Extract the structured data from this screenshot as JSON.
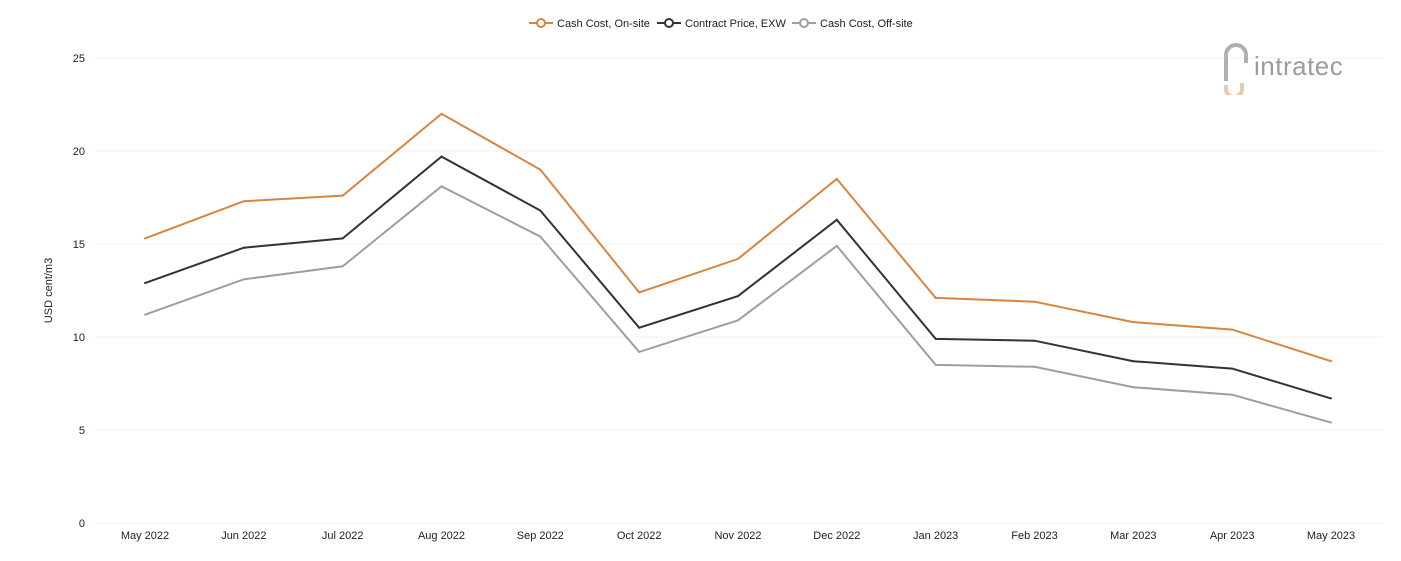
{
  "chart_data": {
    "type": "line",
    "title": "",
    "xlabel": "",
    "ylabel": "USD cent/m3",
    "ylim": [
      0,
      25
    ],
    "yticks": [
      0,
      5,
      10,
      15,
      20,
      25
    ],
    "grid": true,
    "legend_position": "top-center",
    "categories": [
      "May 2022",
      "Jun 2022",
      "Jul 2022",
      "Aug 2022",
      "Sep 2022",
      "Oct 2022",
      "Nov 2022",
      "Dec 2022",
      "Jan 2023",
      "Feb 2023",
      "Mar 2023",
      "Apr 2023",
      "May 2023"
    ],
    "series": [
      {
        "name": "Cash Cost, On-site",
        "color": "#d9843f",
        "values": [
          15.3,
          17.3,
          17.6,
          22.0,
          19.0,
          12.4,
          14.2,
          18.5,
          12.1,
          11.9,
          10.8,
          10.4,
          8.7
        ]
      },
      {
        "name": "Contract Price, EXW",
        "color": "#333333",
        "values": [
          12.9,
          14.8,
          15.3,
          19.7,
          16.8,
          10.5,
          12.2,
          16.3,
          9.9,
          9.8,
          8.7,
          8.3,
          6.7
        ]
      },
      {
        "name": "Cash Cost, Off-site",
        "color": "#9e9e9e",
        "values": [
          11.2,
          13.1,
          13.8,
          18.1,
          15.4,
          9.2,
          10.9,
          14.9,
          8.5,
          8.4,
          7.3,
          6.9,
          5.4
        ]
      }
    ]
  },
  "watermark": {
    "text": "intratec",
    "icon": "intratec-logo-icon"
  }
}
